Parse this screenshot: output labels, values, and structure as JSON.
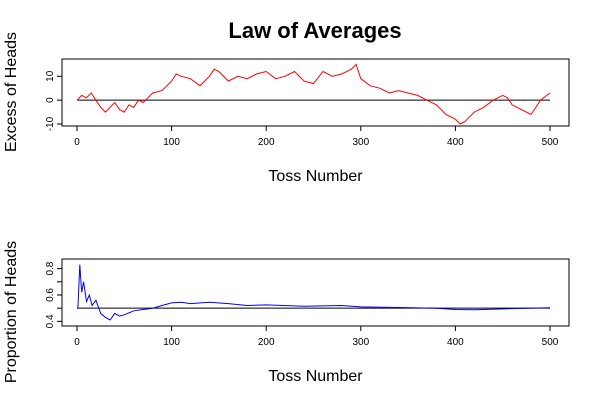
{
  "figure_title": "Law of Averages",
  "chart_data": [
    {
      "type": "line",
      "title": "",
      "xlabel": "Toss Number",
      "ylabel": "Excess of Heads",
      "xlim": [
        0,
        500
      ],
      "ylim": [
        -10,
        16
      ],
      "xticks": [
        0,
        100,
        200,
        300,
        400,
        500
      ],
      "yticks": [
        -10,
        0,
        10
      ],
      "reference_line": 0,
      "grid": false,
      "line_color": "#ff0000",
      "series": [
        {
          "x": [
            0,
            5,
            10,
            15,
            20,
            25,
            30,
            35,
            40,
            45,
            50,
            55,
            60,
            65,
            70,
            75,
            80,
            90,
            100,
            105,
            110,
            120,
            130,
            140,
            145,
            150,
            160,
            170,
            180,
            190,
            200,
            210,
            220,
            230,
            240,
            250,
            260,
            270,
            280,
            290,
            295,
            300,
            310,
            320,
            330,
            340,
            350,
            360,
            370,
            380,
            390,
            400,
            405,
            410,
            415,
            420,
            430,
            440,
            450,
            455,
            460,
            470,
            480,
            490,
            500
          ],
          "y": [
            0,
            2,
            1,
            3,
            0,
            -3,
            -5,
            -3,
            -1,
            -4,
            -5,
            -2,
            -3,
            0,
            -1,
            1,
            3,
            4,
            8,
            11,
            10,
            9,
            6,
            10,
            13,
            12,
            8,
            10,
            9,
            11,
            12,
            9,
            10,
            12,
            8,
            7,
            12,
            10,
            11,
            13,
            15,
            9,
            6,
            5,
            3,
            4,
            3,
            2,
            0,
            -2,
            -6,
            -8,
            -10,
            -9,
            -7,
            -5,
            -3,
            0,
            2,
            1,
            -2,
            -4,
            -6,
            0,
            3
          ]
        }
      ]
    },
    {
      "type": "line",
      "title": "",
      "xlabel": "Toss Number",
      "ylabel": "Proportion of Heads",
      "xlim": [
        0,
        500
      ],
      "ylim": [
        0.38,
        0.85
      ],
      "xticks": [
        0,
        100,
        200,
        300,
        400,
        500
      ],
      "yticks": [
        0.4,
        0.5,
        0.6,
        0.7,
        0.8
      ],
      "ytick_labels": [
        "0.4",
        "",
        "0.6",
        "",
        "0.8"
      ],
      "reference_line": 0.5,
      "grid": false,
      "line_color": "#0000ff",
      "series": [
        {
          "x": [
            1,
            3,
            5,
            7,
            10,
            13,
            16,
            20,
            25,
            30,
            35,
            40,
            45,
            50,
            60,
            70,
            80,
            90,
            100,
            110,
            120,
            140,
            160,
            180,
            200,
            240,
            280,
            300,
            340,
            380,
            400,
            420,
            460,
            500
          ],
          "y": [
            0.5,
            0.83,
            0.62,
            0.7,
            0.55,
            0.6,
            0.52,
            0.56,
            0.46,
            0.43,
            0.41,
            0.46,
            0.44,
            0.45,
            0.48,
            0.49,
            0.5,
            0.52,
            0.54,
            0.545,
            0.535,
            0.545,
            0.535,
            0.52,
            0.525,
            0.515,
            0.52,
            0.51,
            0.505,
            0.5,
            0.49,
            0.488,
            0.497,
            0.503
          ]
        }
      ]
    }
  ]
}
